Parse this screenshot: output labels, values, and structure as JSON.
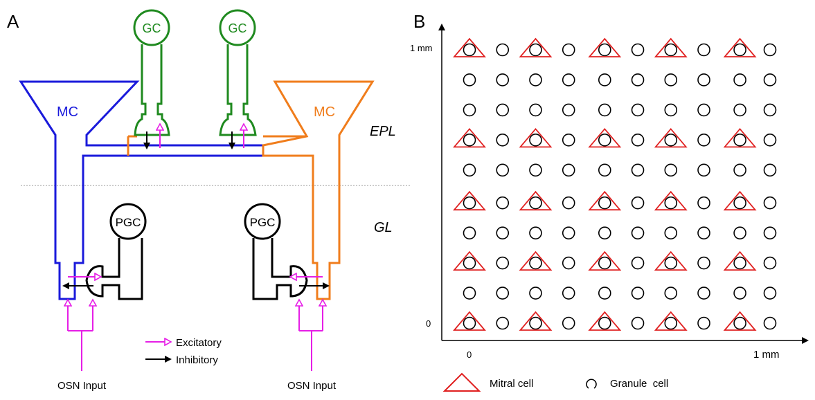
{
  "panel_a": {
    "label": "A",
    "gc_left": "GC",
    "gc_right": "GC",
    "mc_left": "MC",
    "mc_right": "MC",
    "pgc_left": "PGC",
    "pgc_right": "PGC",
    "layer_epl": "EPL",
    "layer_gl": "GL",
    "osn_left": "OSN Input",
    "osn_right": "OSN Input",
    "legend_excitatory": "Excitatory",
    "legend_inhibitory": "Inhibitory",
    "colors": {
      "mc_left": "#1a1adb",
      "mc_right": "#f07d1c",
      "gc": "#1f8a1f",
      "pgc": "#000000",
      "excitatory": "#e61ee6",
      "inhibitory": "#000000"
    }
  },
  "panel_b": {
    "label": "B",
    "y_top_label": "1 mm",
    "y_bottom_label": "0",
    "x_left_label": "0",
    "x_right_label": "1 mm",
    "legend_mitral": "Mitral cell",
    "legend_granule": "Granule  cell",
    "colors": {
      "mitral": "#e02020",
      "granule": "#000000"
    }
  },
  "chart_data": {
    "type": "scatter",
    "title": "",
    "xlabel": "",
    "ylabel": "",
    "xlim": [
      0,
      1
    ],
    "ylim": [
      0,
      1
    ],
    "units": "mm",
    "series": [
      {
        "name": "Mitral cell",
        "marker": "triangle",
        "grid_columns": 5,
        "grid_rows": 5,
        "x": [
          0.0,
          0.22,
          0.45,
          0.67,
          0.9
        ],
        "y": [
          0.0,
          0.22,
          0.44,
          0.67,
          1.0
        ]
      },
      {
        "name": "Granule  cell",
        "marker": "circle",
        "grid_columns": 10,
        "grid_rows": 10,
        "x": [
          0.0,
          0.11,
          0.22,
          0.33,
          0.45,
          0.56,
          0.67,
          0.78,
          0.9,
          1.0
        ],
        "y": [
          0.0,
          0.11,
          0.22,
          0.33,
          0.44,
          0.56,
          0.67,
          0.78,
          0.89,
          1.0
        ]
      }
    ]
  }
}
